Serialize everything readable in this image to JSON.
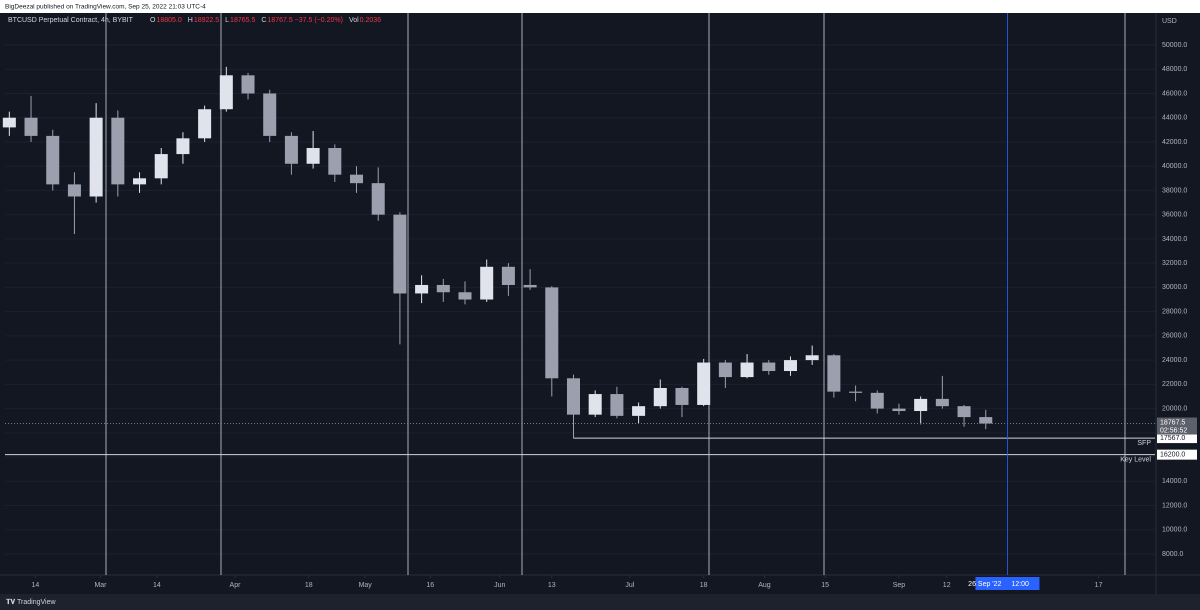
{
  "chart_data": {
    "type": "candlestick",
    "header": "BigDeezal published on TradingView.com, Sep 25, 2022 21:03 UTC-4",
    "symbol": "BTCUSD Perpetual Contract, 4h, BYBIT",
    "ohlc_readout": [
      {
        "label": "O",
        "value": "18805.0"
      },
      {
        "label": "H",
        "value": "18922.5"
      },
      {
        "label": "L",
        "value": "18765.5"
      },
      {
        "label": "C",
        "value": "18767.5 −37.5 (−0.20%)"
      },
      {
        "label": "Vol",
        "value": "0.2036"
      }
    ],
    "currency": "USD",
    "footer": "TradingView",
    "up_color": "#e0e3eb",
    "down_color": "#9aa0ad",
    "x": [
      "2022-02-08",
      "2022-02-13",
      "2022-02-18",
      "2022-02-23",
      "2022-02-28",
      "2022-03-05",
      "2022-03-10",
      "2022-03-15",
      "2022-03-20",
      "2022-03-25",
      "2022-03-30",
      "2022-04-04",
      "2022-04-09",
      "2022-04-14",
      "2022-04-19",
      "2022-04-24",
      "2022-04-29",
      "2022-05-04",
      "2022-05-09",
      "2022-05-14",
      "2022-05-19",
      "2022-05-24",
      "2022-05-29",
      "2022-06-03",
      "2022-06-08",
      "2022-06-13",
      "2022-06-18",
      "2022-06-23",
      "2022-06-28",
      "2022-07-03",
      "2022-07-08",
      "2022-07-13",
      "2022-07-18",
      "2022-07-23",
      "2022-07-28",
      "2022-08-02",
      "2022-08-07",
      "2022-08-12",
      "2022-08-17",
      "2022-08-22",
      "2022-08-27",
      "2022-09-01",
      "2022-09-06",
      "2022-09-11",
      "2022-09-16",
      "2022-09-21"
    ],
    "open": [
      43200,
      44000,
      42500,
      38500,
      37500,
      44000,
      38500,
      39000,
      41000,
      42300,
      44700,
      47500,
      46000,
      42500,
      40200,
      41500,
      39300,
      38600,
      36000,
      29500,
      30200,
      29600,
      29000,
      31700,
      30200,
      30000,
      22500,
      19500,
      21200,
      19400,
      20200,
      21700,
      20300,
      23800,
      22600,
      23800,
      23100,
      24000,
      24400,
      21400,
      21300,
      20000,
      19800,
      20800,
      20200,
      19300
    ],
    "high": [
      44500,
      45800,
      43000,
      39500,
      45200,
      44600,
      39500,
      41500,
      42800,
      45000,
      48200,
      47700,
      46300,
      42800,
      42900,
      41800,
      40000,
      39900,
      36200,
      31000,
      30700,
      30500,
      32300,
      32000,
      31500,
      30100,
      22800,
      21500,
      21800,
      20500,
      22400,
      21800,
      24100,
      24000,
      24500,
      24000,
      24300,
      25200,
      24500,
      21900,
      21500,
      20400,
      21000,
      22700,
      20300,
      19900
    ],
    "low": [
      42500,
      42000,
      38000,
      34400,
      37000,
      37500,
      37800,
      38500,
      40200,
      42000,
      44500,
      45500,
      42000,
      39300,
      39800,
      38700,
      37800,
      35500,
      25300,
      28700,
      28800,
      28600,
      28800,
      29300,
      29800,
      21000,
      17567,
      19300,
      19200,
      18800,
      20000,
      19300,
      20200,
      21700,
      22500,
      22800,
      22700,
      23600,
      20900,
      20600,
      19600,
      19500,
      18700,
      20000,
      18500,
      18300
    ],
    "close": [
      44000,
      42500,
      38500,
      37500,
      44000,
      38500,
      39000,
      41000,
      42300,
      44700,
      47500,
      46000,
      42500,
      40200,
      41500,
      39300,
      38600,
      36000,
      29500,
      30200,
      29600,
      29000,
      31700,
      30200,
      30000,
      22500,
      19500,
      21200,
      19400,
      20200,
      21700,
      20300,
      23800,
      22600,
      23800,
      23100,
      24000,
      24400,
      21400,
      21300,
      20000,
      19800,
      20800,
      20200,
      19300,
      18767.5
    ],
    "xlim": [
      "2022-02-07",
      "2022-10-30"
    ],
    "xticks": [
      {
        "value": "2022-02-14",
        "label": "14"
      },
      {
        "value": "2022-03-01",
        "label": "Mar"
      },
      {
        "value": "2022-03-14",
        "label": "14"
      },
      {
        "value": "2022-04-01",
        "label": "Apr"
      },
      {
        "value": "2022-04-18",
        "label": "18"
      },
      {
        "value": "2022-05-01",
        "label": "May"
      },
      {
        "value": "2022-05-16",
        "label": "16"
      },
      {
        "value": "2022-06-01",
        "label": "Jun"
      },
      {
        "value": "2022-06-13",
        "label": "13"
      },
      {
        "value": "2022-07-01",
        "label": "Jul"
      },
      {
        "value": "2022-07-18",
        "label": "18"
      },
      {
        "value": "2022-08-01",
        "label": "Aug"
      },
      {
        "value": "2022-08-15",
        "label": "15"
      },
      {
        "value": "2022-09-01",
        "label": "Sep"
      },
      {
        "value": "2022-09-12",
        "label": "12"
      },
      {
        "value": "2022-10-17",
        "label": "17"
      }
    ],
    "ylim": [
      6270,
      52640
    ],
    "yticks": [
      {
        "value": 8000,
        "label": "8000.0"
      },
      {
        "value": 10000,
        "label": "10000.0"
      },
      {
        "value": 12000,
        "label": "12000.0"
      },
      {
        "value": 14000,
        "label": "14000.0"
      },
      {
        "value": 16000,
        "label": "16000.0"
      },
      {
        "value": 18000,
        "label": "18000.0"
      },
      {
        "value": 20000,
        "label": "20000.0"
      },
      {
        "value": 22000,
        "label": "22000.0"
      },
      {
        "value": 24000,
        "label": "24000.0"
      },
      {
        "value": 26000,
        "label": "26000.0"
      },
      {
        "value": 28000,
        "label": "28000.0"
      },
      {
        "value": 30000,
        "label": "30000.0"
      },
      {
        "value": 32000,
        "label": "32000.0"
      },
      {
        "value": 34000,
        "label": "34000.0"
      },
      {
        "value": 36000,
        "label": "36000.0"
      },
      {
        "value": 38000,
        "label": "38000.0"
      },
      {
        "value": 40000,
        "label": "40000.0"
      },
      {
        "value": 42000,
        "label": "42000.0"
      },
      {
        "value": 44000,
        "label": "44000.0"
      },
      {
        "value": 46000,
        "label": "46000.0"
      },
      {
        "value": 48000,
        "label": "48000.0"
      },
      {
        "value": 50000,
        "label": "50000.0"
      }
    ],
    "grid": true,
    "last_price": 18767.5,
    "countdown": "02:56:52",
    "annotations": [
      {
        "label": "SFP",
        "value": 17567,
        "value_label": "17567.0",
        "start": "2022-06-18"
      },
      {
        "label": "Key Level",
        "value": 16200,
        "value_label": "16200.0"
      }
    ],
    "crosshair": {
      "x": "2022-09-26",
      "date_label": "26 Sep '22",
      "time_label": "12:00"
    }
  }
}
